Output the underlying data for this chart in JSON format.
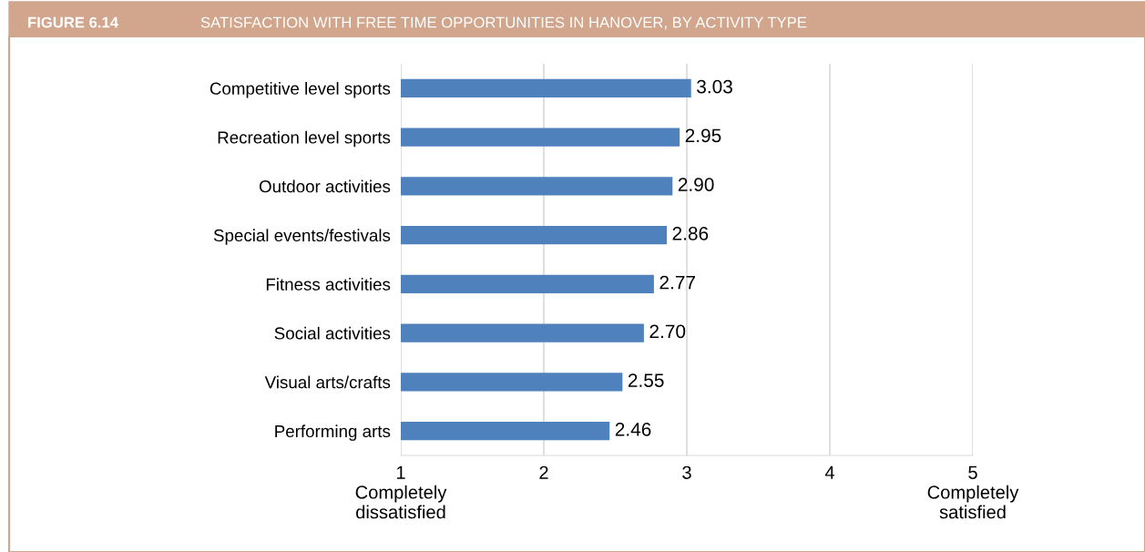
{
  "chart_data": {
    "type": "bar",
    "orientation": "horizontal",
    "title": "SATISFACTION WITH FREE TIME OPPORTUNITIES IN HANOVER, BY ACTIVITY TYPE",
    "annotations": [
      "FIGURE 6.14"
    ],
    "categories": [
      "Competitive level sports",
      "Recreation level sports",
      "Outdoor activities",
      "Special events/festivals",
      "Fitness activities",
      "Social activities",
      "Visual arts/crafts",
      "Performing arts"
    ],
    "values": [
      3.03,
      2.95,
      2.9,
      2.86,
      2.77,
      2.7,
      2.55,
      2.46
    ],
    "value_labels": [
      "3.03",
      "2.95",
      "2.90",
      "2.86",
      "2.77",
      "2.70",
      "2.55",
      "2.46"
    ],
    "color": "#4f81bd",
    "xlim": [
      1,
      5
    ],
    "xticks": [
      {
        "value": 1,
        "label": "1\nCompletely\ndissatisfied"
      },
      2,
      3,
      4,
      {
        "value": 5,
        "label": "5\nCompletely\nsatisfied"
      }
    ],
    "grid": "x",
    "legend": false
  }
}
